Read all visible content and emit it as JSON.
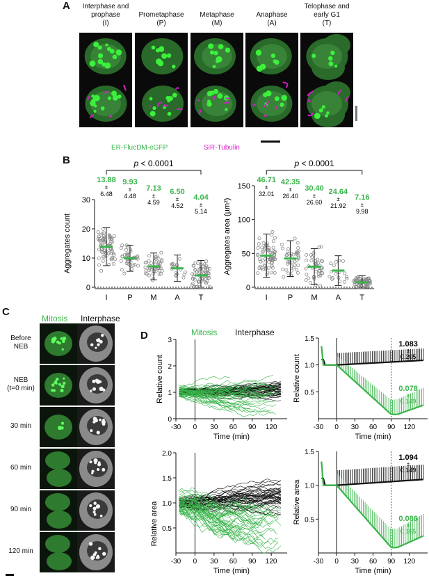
{
  "panels": {
    "A": "A",
    "B": "B",
    "C": "C",
    "D": "D"
  },
  "panelA": {
    "headers": [
      {
        "line1": "Interphase and",
        "line2": "prophase",
        "code": "(I)"
      },
      {
        "line1": "Prometaphase",
        "line2": "",
        "code": "(P)"
      },
      {
        "line1": "Metaphase",
        "line2": "",
        "code": "(M)"
      },
      {
        "line1": "Anaphase",
        "line2": "",
        "code": "(A)"
      },
      {
        "line1": "Telophase and",
        "line2": "early G1",
        "code": "(T)"
      }
    ],
    "caption_green": "ER-FlucDM-eGFP",
    "caption_magenta": "SiR-Tubulin"
  },
  "panelB": {
    "pvalue": "p < 0.0001",
    "colors": {
      "green": "#39b54a",
      "black": "#111111",
      "points": "#888888"
    },
    "chart_data": [
      {
        "type": "scatter",
        "ylabel": "Aggregates count",
        "categories": [
          "I",
          "P",
          "M",
          "A",
          "T"
        ],
        "ylim": [
          0,
          30
        ],
        "yticks": [
          0,
          10,
          20,
          30
        ],
        "means": [
          13.88,
          9.93,
          7.13,
          6.5,
          4.04
        ],
        "sds": [
          6.48,
          4.48,
          4.59,
          4.52,
          5.14
        ],
        "mean_labels": [
          "13.88",
          "9.93",
          "7.13",
          "6.50",
          "4.04"
        ],
        "sd_labels": [
          "6.48",
          "4.48",
          "4.59",
          "4.52",
          "5.14"
        ],
        "pm": "±",
        "bracket": [
          "I",
          "T"
        ]
      },
      {
        "type": "scatter",
        "ylabel": "Aggregates area (µm²)",
        "categories": [
          "I",
          "P",
          "M",
          "A",
          "T"
        ],
        "ylim": [
          0,
          150
        ],
        "yticks": [
          0,
          50,
          100,
          150
        ],
        "means": [
          46.71,
          42.35,
          30.4,
          24.64,
          7.16
        ],
        "sds": [
          32.01,
          26.4,
          26.6,
          21.92,
          9.98
        ],
        "mean_labels": [
          "46.71",
          "42.35",
          "30.40",
          "24.64",
          "7.16"
        ],
        "sd_labels": [
          "32.01",
          "26.40",
          "26.60",
          "21.92",
          "9.98"
        ],
        "pm": "±",
        "bracket": [
          "I",
          "T"
        ]
      }
    ]
  },
  "panelC": {
    "header_green": "Mitosis",
    "header_black": "Interphase",
    "rows": [
      {
        "l1": "Before",
        "l2": "NEB"
      },
      {
        "l1": "NEB",
        "l2": "(t=0 min)"
      },
      {
        "l1": "30 min",
        "l2": ""
      },
      {
        "l1": "60 min",
        "l2": ""
      },
      {
        "l1": "90 min",
        "l2": ""
      },
      {
        "l1": "120 min",
        "l2": ""
      }
    ]
  },
  "panelD": {
    "legend_green": "Mitosis",
    "legend_black": "Interphase",
    "chart_data": [
      {
        "type": "line",
        "ylabel": "Relative count",
        "xlabel": "Time (min)",
        "xlim": [
          -30,
          145
        ],
        "ylim": [
          0,
          3
        ],
        "xticks": [
          -30,
          0,
          30,
          60,
          90,
          120
        ],
        "yticks": [
          0,
          1,
          2,
          3
        ]
      },
      {
        "type": "line",
        "ylabel": "Relative count",
        "xlabel": "Time (min)",
        "xlim": [
          -30,
          150
        ],
        "ylim": [
          0,
          1.5
        ],
        "xticks": [
          -30,
          0,
          30,
          60,
          90,
          120
        ],
        "yticks": [
          0.5,
          1.0,
          1.5
        ],
        "annot_black": {
          "value": "1.083",
          "pm": "±",
          "sd": "0.205"
        },
        "annot_green": {
          "value": "0.078",
          "pm": "±",
          "sd": "0.149"
        }
      },
      {
        "type": "line",
        "ylabel": "Relative area",
        "xlabel": "Time (min)",
        "xlim": [
          -30,
          145
        ],
        "ylim": [
          0,
          2.0
        ],
        "xticks": [
          -30,
          0,
          30,
          60,
          90,
          120
        ],
        "yticks": [
          0.5,
          1.0,
          1.5,
          2.0
        ]
      },
      {
        "type": "line",
        "ylabel": "Relative area",
        "xlabel": "Time (min)",
        "xlim": [
          -30,
          150
        ],
        "ylim": [
          0,
          1.5
        ],
        "xticks": [
          -30,
          0,
          30,
          60,
          90,
          120
        ],
        "yticks": [
          0.5,
          1.0,
          1.5
        ],
        "annot_black": {
          "value": "1.094",
          "pm": "±",
          "sd": "0.149"
        },
        "annot_green": {
          "value": "0.086",
          "pm": "±",
          "sd": "0.165"
        }
      }
    ]
  }
}
